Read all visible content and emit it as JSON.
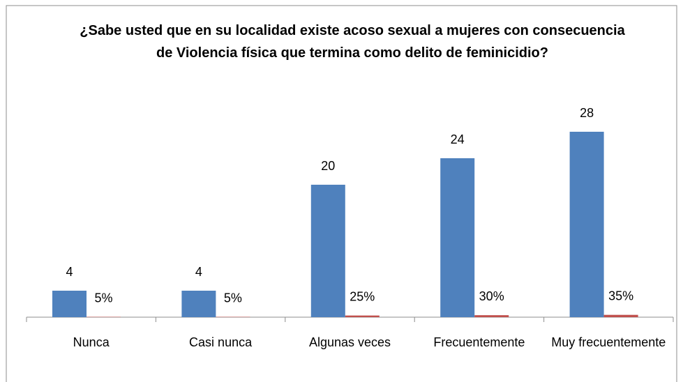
{
  "chart_data": {
    "type": "bar",
    "title": "¿Sabe usted que en su localidad existe acoso sexual a mujeres con consecuencia de Violencia física que termina como delito de feminicidio?",
    "categories": [
      "Nunca",
      "Casi nunca",
      "Algunas veces",
      "Frecuentemente",
      "Muy frecuentemente"
    ],
    "series": [
      {
        "color": "#4f81bd",
        "values": [
          4,
          4,
          20,
          24,
          28
        ]
      },
      {
        "color": "#c0504d",
        "values": [
          0.05,
          0.05,
          0.25,
          0.3,
          0.35
        ],
        "value_labels": [
          "5%",
          "5%",
          "25%",
          "30%",
          "35%"
        ]
      }
    ],
    "ylim": [
      0,
      30
    ]
  }
}
